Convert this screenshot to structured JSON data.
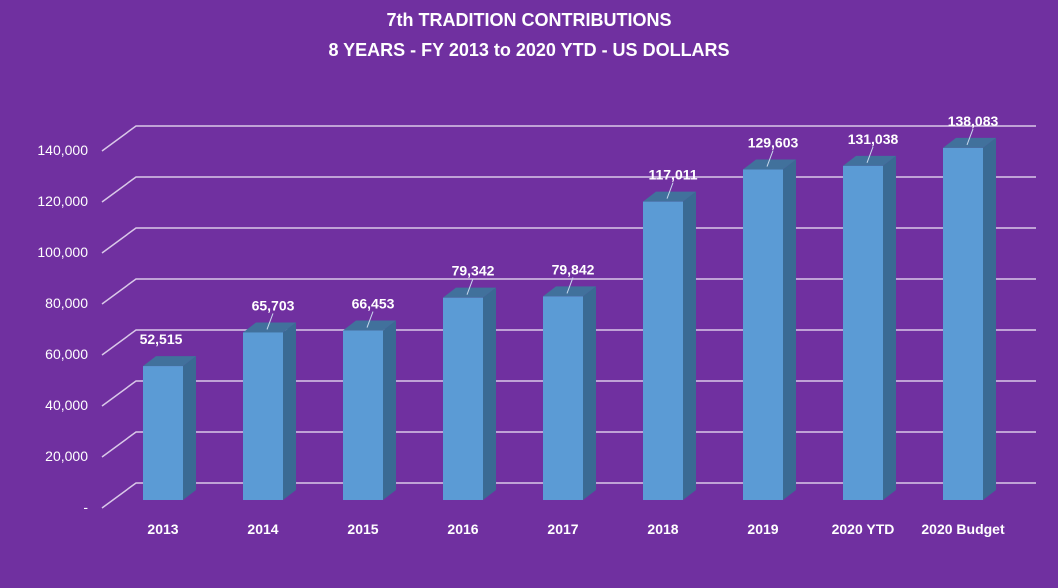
{
  "chart_data": {
    "type": "bar",
    "title": "7th TRADITION CONTRIBUTIONS",
    "subtitle": "8 YEARS - FY 2013 to 2020 YTD - US DOLLARS",
    "categories": [
      "2013",
      "2014",
      "2015",
      "2016",
      "2017",
      "2018",
      "2019",
      "2020 YTD",
      "2020 Budget"
    ],
    "values": [
      52515,
      65703,
      66453,
      79342,
      79842,
      117011,
      129603,
      131038,
      138083
    ],
    "data_labels": [
      "52,515",
      "65,703",
      "66,453",
      "79,342",
      "79,842",
      "117,011",
      "129,603",
      "131,038",
      "138,083"
    ],
    "ytick_labels": [
      "-",
      "20,000",
      "40,000",
      "60,000",
      "80,000",
      "100,000",
      "120,000",
      "140,000"
    ],
    "yticks": [
      0,
      20000,
      40000,
      60000,
      80000,
      100000,
      120000,
      140000
    ],
    "ylim": [
      0,
      140000
    ],
    "xlabel": "",
    "ylabel": "",
    "grid": true,
    "colors": {
      "background": "#7030A0",
      "bar_front": "#5B9BD5",
      "bar_side": "#3A6A93",
      "bar_top": "#41719C",
      "grid": "#D9C8E8"
    }
  }
}
